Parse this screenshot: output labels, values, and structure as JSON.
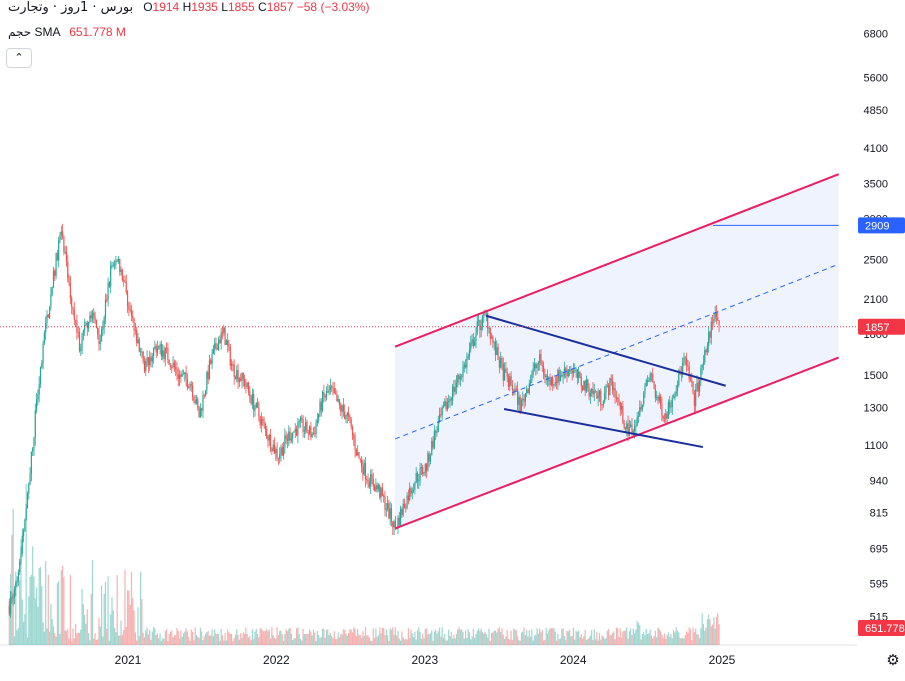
{
  "legend": {
    "symbol": "بورس · 1روز · وتجارت",
    "open_label": "O",
    "open": "1914",
    "high_label": "H",
    "high": "1935",
    "low_label": "L",
    "low": "1855",
    "close_label": "C",
    "close": "1857",
    "change": "−58 (−3.03%)"
  },
  "volume_legend": {
    "label": "حجم",
    "sma_label": "SMA",
    "sma_value": "651.778 M"
  },
  "collapse_icon": "chevron-up-icon",
  "settings_icon": "gear-icon",
  "colors": {
    "up": "#26a69a",
    "down": "#ef5350",
    "channel": "#e91e63",
    "trend": "#1a2f9c",
    "fill": "#e8effc",
    "price_tag": "#f23645",
    "target_tag": "#2962ff"
  },
  "chart_data": {
    "type": "candlestick",
    "scale": "log",
    "y_axis_ticks": [
      "6800",
      "5600",
      "4850",
      "4100",
      "3500",
      "3000",
      "2500",
      "2100",
      "1800",
      "1500",
      "1300",
      "1100",
      "940",
      "815",
      "695",
      "595",
      "515"
    ],
    "x_axis_ticks": [
      "2021",
      "2022",
      "2023",
      "2024",
      "2025"
    ],
    "ylim": [
      470,
      7800
    ],
    "last_price_label": "1857",
    "target_label": "2909",
    "volume_sma_label": "651.778",
    "price_path": [
      [
        "2020-03-15",
        540
      ],
      [
        "2020-04-05",
        620
      ],
      [
        "2020-05-01",
        900
      ],
      [
        "2020-05-20",
        1300
      ],
      [
        "2020-06-10",
        1800
      ],
      [
        "2020-07-05",
        2400
      ],
      [
        "2020-07-20",
        2850
      ],
      [
        "2020-08-10",
        2200
      ],
      [
        "2020-09-05",
        1700
      ],
      [
        "2020-10-01",
        2000
      ],
      [
        "2020-10-25",
        1750
      ],
      [
        "2020-11-20",
        2400
      ],
      [
        "2020-12-05",
        2550
      ],
      [
        "2020-12-25",
        2200
      ],
      [
        "2021-01-15",
        1850
      ],
      [
        "2021-02-10",
        1550
      ],
      [
        "2021-03-10",
        1700
      ],
      [
        "2021-04-05",
        1650
      ],
      [
        "2021-05-05",
        1500
      ],
      [
        "2021-06-05",
        1450
      ],
      [
        "2021-06-25",
        1250
      ],
      [
        "2021-07-20",
        1550
      ],
      [
        "2021-08-10",
        1750
      ],
      [
        "2021-08-25",
        1800
      ],
      [
        "2021-09-15",
        1550
      ],
      [
        "2021-10-15",
        1450
      ],
      [
        "2021-11-10",
        1300
      ],
      [
        "2021-12-10",
        1150
      ],
      [
        "2022-01-05",
        1050
      ],
      [
        "2022-02-01",
        1150
      ],
      [
        "2022-03-01",
        1200
      ],
      [
        "2022-04-01",
        1150
      ],
      [
        "2022-04-25",
        1350
      ],
      [
        "2022-05-15",
        1400
      ],
      [
        "2022-06-05",
        1300
      ],
      [
        "2022-06-25",
        1250
      ],
      [
        "2022-07-20",
        1050
      ],
      [
        "2022-08-15",
        950
      ],
      [
        "2022-09-10",
        900
      ],
      [
        "2022-10-01",
        830
      ],
      [
        "2022-10-20",
        760
      ],
      [
        "2022-11-15",
        860
      ],
      [
        "2022-12-10",
        950
      ],
      [
        "2023-01-05",
        1000
      ],
      [
        "2023-01-25",
        1150
      ],
      [
        "2023-02-20",
        1300
      ],
      [
        "2023-03-20",
        1450
      ],
      [
        "2023-04-15",
        1600
      ],
      [
        "2023-05-10",
        1850
      ],
      [
        "2023-06-01",
        1950
      ],
      [
        "2023-06-20",
        1700
      ],
      [
        "2023-07-15",
        1500
      ],
      [
        "2023-08-10",
        1400
      ],
      [
        "2023-08-25",
        1300
      ],
      [
        "2023-09-20",
        1500
      ],
      [
        "2023-10-10",
        1600
      ],
      [
        "2023-11-01",
        1450
      ],
      [
        "2023-12-01",
        1500
      ],
      [
        "2023-12-25",
        1550
      ],
      [
        "2024-01-20",
        1450
      ],
      [
        "2024-02-15",
        1400
      ],
      [
        "2024-03-10",
        1350
      ],
      [
        "2024-04-05",
        1450
      ],
      [
        "2024-04-25",
        1300
      ],
      [
        "2024-05-15",
        1150
      ],
      [
        "2024-06-05",
        1250
      ],
      [
        "2024-06-25",
        1400
      ],
      [
        "2024-07-10",
        1500
      ],
      [
        "2024-07-25",
        1350
      ],
      [
        "2024-08-15",
        1250
      ],
      [
        "2024-09-05",
        1400
      ],
      [
        "2024-10-01",
        1600
      ],
      [
        "2024-10-25",
        1350
      ],
      [
        "2024-11-15",
        1550
      ],
      [
        "2024-12-01",
        1800
      ],
      [
        "2024-12-15",
        2000
      ],
      [
        "2024-12-25",
        1857
      ]
    ],
    "drawings": {
      "channel_upper": [
        [
          "2022-10-20",
          1700
        ],
        [
          "2025-10-15",
          3650
        ]
      ],
      "channel_lower": [
        [
          "2022-10-20",
          760
        ],
        [
          "2025-10-15",
          1620
        ]
      ],
      "channel_mid": [
        [
          "2022-10-20",
          1130
        ],
        [
          "2025-10-15",
          2450
        ]
      ],
      "trend_upper": [
        [
          "2023-06-01",
          1950
        ],
        [
          "2025-01-10",
          1430
        ]
      ],
      "trend_lower": [
        [
          "2023-07-15",
          1290
        ],
        [
          "2024-11-15",
          1090
        ]
      ],
      "target_level": [
        [
          "2024-12-10",
          2909
        ],
        [
          "2025-10-15",
          2909
        ]
      ]
    }
  }
}
